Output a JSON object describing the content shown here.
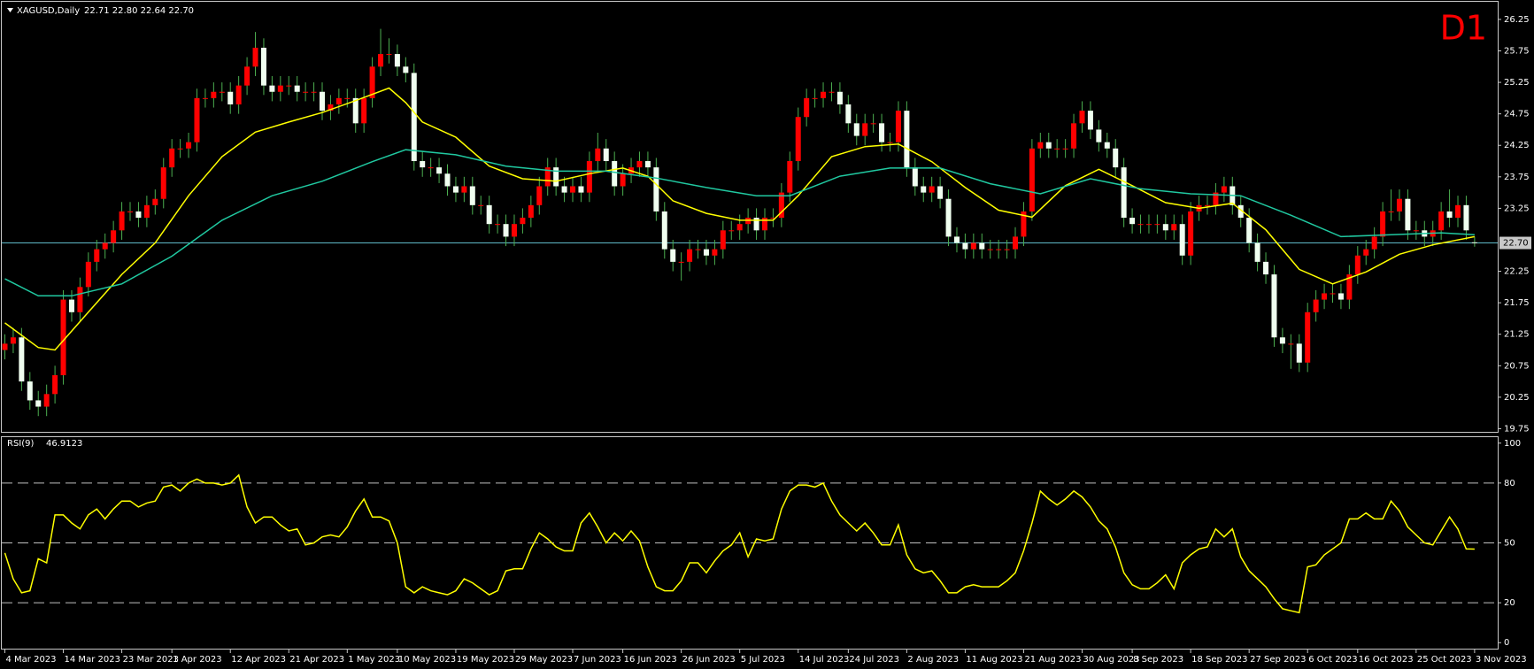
{
  "chart_data": [
    {
      "type": "candlestick",
      "title": "XAGUSD,Daily",
      "info": "22.71 22.80 22.64 22.70",
      "timeframe": "D1",
      "open": [
        21.0,
        21.1,
        21.2,
        20.5,
        20.2,
        20.1,
        20.3,
        20.6,
        21.8,
        21.6,
        22.0,
        22.4,
        22.6,
        22.7,
        22.9,
        23.2,
        23.2,
        23.1,
        23.3,
        23.4,
        23.9,
        24.2,
        24.2,
        24.3,
        25.0,
        25.0,
        25.1,
        25.1,
        24.9,
        25.2,
        25.5,
        25.8,
        25.2,
        25.1,
        25.2,
        25.2,
        25.1,
        25.1,
        25.1,
        24.8,
        24.9,
        25.0,
        25.0,
        24.6,
        25.0,
        25.5,
        25.7,
        25.7,
        25.5,
        25.4,
        24.0,
        23.9,
        23.9,
        23.8,
        23.6,
        23.5,
        23.6,
        23.3,
        23.3,
        23.0,
        23.0,
        22.8,
        23.0,
        23.1,
        23.3,
        23.6,
        23.9,
        23.6,
        23.5,
        23.6,
        23.5,
        24.0,
        24.2,
        24.0,
        23.6,
        23.8,
        23.9,
        24.0,
        23.9,
        23.2,
        22.6,
        22.4,
        22.4,
        22.6,
        22.6,
        22.5,
        22.6,
        22.9,
        22.9,
        23.0,
        23.1,
        22.9,
        23.1,
        23.1,
        23.5,
        24.0,
        24.7,
        25.0,
        25.0,
        25.1,
        25.1,
        24.9,
        24.6,
        24.4,
        24.6,
        24.6,
        24.3,
        24.3,
        24.8,
        23.9,
        23.6,
        23.5,
        23.6,
        23.4,
        22.8,
        22.7,
        22.6,
        22.7,
        22.6,
        22.6,
        22.6,
        22.6,
        22.8,
        23.2,
        24.2,
        24.3,
        24.2,
        24.2,
        24.2,
        24.6,
        24.8,
        24.5,
        24.3,
        24.2,
        23.9,
        23.1,
        23.0,
        23.0,
        23.0,
        23.0,
        22.9,
        23.0,
        22.5,
        23.2,
        23.3,
        23.3,
        23.5,
        23.6,
        23.3,
        23.1,
        22.7,
        22.4,
        22.2,
        21.2,
        21.1,
        21.1,
        20.8,
        21.6,
        21.8,
        21.9,
        21.9,
        21.8,
        22.2,
        22.5,
        22.6,
        22.8,
        23.2,
        23.2,
        23.4,
        22.9,
        22.9,
        22.8,
        22.9,
        23.2,
        23.1,
        23.3,
        22.71
      ],
      "high": [
        21.25,
        21.35,
        21.35,
        20.65,
        20.35,
        20.45,
        20.75,
        21.95,
        21.95,
        22.15,
        22.55,
        22.75,
        22.85,
        23.05,
        23.35,
        23.35,
        23.35,
        23.45,
        23.55,
        24.05,
        24.35,
        24.35,
        24.45,
        25.15,
        25.15,
        25.25,
        25.25,
        25.25,
        25.35,
        25.65,
        26.05,
        25.95,
        25.35,
        25.35,
        25.35,
        25.35,
        25.25,
        25.25,
        25.25,
        25.05,
        25.15,
        25.15,
        25.15,
        25.15,
        25.65,
        26.1,
        25.95,
        25.85,
        25.65,
        25.55,
        24.15,
        24.05,
        24.05,
        23.95,
        23.75,
        23.75,
        23.75,
        23.45,
        23.45,
        23.15,
        23.15,
        23.15,
        23.25,
        23.45,
        23.75,
        24.05,
        24.05,
        23.75,
        23.75,
        23.75,
        24.15,
        24.45,
        24.35,
        24.15,
        23.95,
        24.05,
        24.15,
        24.15,
        24.05,
        23.35,
        22.75,
        22.55,
        22.75,
        22.75,
        22.75,
        22.75,
        23.05,
        23.05,
        23.15,
        23.25,
        23.25,
        23.25,
        23.25,
        23.65,
        24.15,
        24.85,
        25.15,
        25.15,
        25.25,
        25.25,
        25.25,
        25.05,
        24.75,
        24.75,
        24.75,
        24.75,
        24.45,
        24.95,
        24.95,
        24.05,
        23.75,
        23.75,
        23.75,
        23.55,
        22.95,
        22.85,
        22.85,
        22.85,
        22.75,
        22.75,
        22.75,
        22.95,
        23.35,
        24.35,
        24.45,
        24.45,
        24.35,
        24.35,
        24.75,
        24.95,
        24.95,
        24.65,
        24.45,
        24.35,
        24.05,
        23.25,
        23.15,
        23.15,
        23.15,
        23.15,
        23.15,
        23.15,
        23.35,
        23.45,
        23.45,
        23.65,
        23.75,
        23.75,
        23.45,
        23.25,
        22.85,
        22.55,
        22.35,
        21.35,
        21.25,
        21.25,
        21.75,
        21.95,
        22.05,
        22.05,
        22.05,
        22.35,
        22.65,
        22.75,
        22.95,
        23.35,
        23.55,
        23.55,
        23.55,
        23.05,
        23.05,
        23.05,
        23.35,
        23.55,
        23.45,
        23.45,
        22.8
      ],
      "low": [
        20.85,
        20.95,
        20.35,
        20.05,
        19.95,
        19.95,
        20.15,
        20.45,
        21.45,
        21.45,
        21.85,
        22.25,
        22.45,
        22.55,
        22.75,
        23.05,
        22.95,
        22.95,
        23.15,
        23.25,
        23.75,
        24.05,
        24.05,
        24.15,
        24.85,
        24.85,
        24.95,
        24.75,
        24.75,
        25.05,
        25.35,
        25.05,
        24.95,
        24.95,
        25.05,
        24.95,
        24.95,
        24.95,
        24.65,
        24.65,
        24.75,
        24.85,
        24.45,
        24.45,
        24.85,
        25.35,
        25.55,
        25.35,
        25.25,
        23.85,
        23.75,
        23.75,
        23.65,
        23.45,
        23.35,
        23.35,
        23.15,
        23.15,
        22.85,
        22.85,
        22.65,
        22.65,
        22.85,
        22.95,
        23.15,
        23.45,
        23.45,
        23.35,
        23.35,
        23.35,
        23.35,
        23.85,
        23.85,
        23.45,
        23.45,
        23.65,
        23.75,
        23.75,
        23.05,
        22.45,
        22.25,
        22.1,
        22.25,
        22.45,
        22.35,
        22.35,
        22.45,
        22.75,
        22.75,
        22.85,
        22.75,
        22.75,
        22.95,
        22.95,
        23.35,
        23.85,
        24.55,
        24.85,
        24.85,
        24.95,
        24.75,
        24.45,
        24.25,
        24.25,
        24.45,
        24.15,
        24.15,
        24.15,
        23.75,
        23.45,
        23.35,
        23.35,
        23.25,
        22.65,
        22.55,
        22.45,
        22.45,
        22.45,
        22.45,
        22.45,
        22.45,
        22.45,
        22.65,
        23.05,
        24.05,
        24.05,
        24.05,
        24.05,
        24.05,
        24.45,
        24.35,
        24.15,
        24.05,
        23.75,
        22.95,
        22.85,
        22.85,
        22.85,
        22.85,
        22.75,
        22.75,
        22.35,
        22.35,
        23.05,
        23.15,
        23.15,
        23.35,
        23.15,
        22.95,
        22.55,
        22.25,
        22.05,
        21.05,
        20.95,
        20.7,
        20.65,
        20.65,
        21.45,
        21.65,
        21.75,
        21.65,
        21.65,
        22.05,
        22.35,
        22.45,
        22.65,
        23.05,
        23.05,
        22.75,
        22.75,
        22.65,
        22.65,
        22.75,
        22.95,
        22.95,
        22.75,
        22.64
      ],
      "close": [
        21.1,
        21.2,
        20.5,
        20.2,
        20.1,
        20.3,
        20.6,
        21.8,
        21.6,
        22.0,
        22.4,
        22.6,
        22.7,
        22.9,
        23.2,
        23.2,
        23.1,
        23.3,
        23.4,
        23.9,
        24.2,
        24.2,
        24.3,
        25.0,
        25.0,
        25.1,
        25.1,
        24.9,
        25.2,
        25.5,
        25.8,
        25.2,
        25.1,
        25.2,
        25.2,
        25.1,
        25.1,
        25.1,
        24.8,
        24.9,
        25.0,
        25.0,
        24.6,
        25.0,
        25.5,
        25.7,
        25.7,
        25.5,
        25.4,
        24.0,
        23.9,
        23.9,
        23.8,
        23.6,
        23.5,
        23.6,
        23.3,
        23.3,
        23.0,
        23.0,
        22.8,
        23.0,
        23.1,
        23.3,
        23.6,
        23.9,
        23.6,
        23.5,
        23.6,
        23.5,
        24.0,
        24.2,
        24.0,
        23.6,
        23.8,
        23.9,
        24.0,
        23.9,
        23.2,
        22.6,
        22.4,
        22.4,
        22.6,
        22.6,
        22.5,
        22.6,
        22.9,
        22.9,
        23.0,
        23.1,
        22.9,
        23.1,
        23.1,
        23.5,
        24.0,
        24.7,
        25.0,
        25.0,
        25.1,
        25.1,
        24.9,
        24.6,
        24.4,
        24.6,
        24.6,
        24.3,
        24.3,
        24.8,
        23.9,
        23.6,
        23.5,
        23.6,
        23.4,
        22.8,
        22.7,
        22.6,
        22.7,
        22.6,
        22.6,
        22.6,
        22.6,
        22.8,
        23.2,
        24.2,
        24.3,
        24.2,
        24.2,
        24.2,
        24.6,
        24.8,
        24.5,
        24.3,
        24.2,
        23.9,
        23.1,
        23.0,
        23.0,
        23.0,
        23.0,
        22.9,
        23.0,
        22.5,
        23.2,
        23.3,
        23.3,
        23.5,
        23.6,
        23.3,
        23.1,
        22.7,
        22.4,
        22.2,
        21.2,
        21.1,
        21.1,
        20.8,
        21.6,
        21.8,
        21.9,
        21.9,
        21.8,
        22.2,
        22.5,
        22.6,
        22.8,
        23.2,
        23.2,
        23.4,
        22.9,
        22.9,
        22.8,
        22.9,
        23.2,
        23.1,
        23.3,
        22.9,
        22.7
      ],
      "up_color": "#ff0000",
      "down_color": "#f0fff0",
      "wick_color": "#4caf50",
      "lines": [
        {
          "color": "#ffff00",
          "x": [
            0,
            4,
            6,
            10,
            14,
            18,
            22,
            26,
            30,
            34,
            38,
            42,
            46,
            48,
            50,
            54,
            58,
            62,
            66,
            70,
            74,
            77,
            80,
            84,
            88,
            92,
            95,
            99,
            103,
            107,
            111,
            115,
            119,
            123,
            127,
            131,
            135,
            139,
            143,
            147,
            151,
            155,
            159,
            163,
            167,
            171,
            176
          ],
          "values": [
            21.43,
            21.04,
            21.0,
            21.6,
            22.2,
            22.7,
            23.45,
            24.07,
            24.46,
            24.62,
            24.77,
            24.96,
            25.16,
            24.93,
            24.62,
            24.38,
            23.92,
            23.72,
            23.68,
            23.8,
            23.89,
            23.76,
            23.37,
            23.17,
            23.06,
            23.06,
            23.45,
            24.07,
            24.23,
            24.27,
            23.99,
            23.58,
            23.22,
            23.11,
            23.61,
            23.87,
            23.61,
            23.34,
            23.25,
            23.33,
            22.91,
            22.28,
            22.05,
            22.24,
            22.52,
            22.67,
            22.8
          ]
        },
        {
          "color": "#20c8a0",
          "x": [
            0,
            4,
            8,
            14,
            20,
            26,
            32,
            38,
            44,
            48,
            54,
            60,
            66,
            72,
            78,
            84,
            90,
            94,
            100,
            106,
            112,
            118,
            124,
            130,
            136,
            142,
            148,
            154,
            160,
            166,
            172,
            176
          ],
          "values": [
            22.13,
            21.86,
            21.86,
            22.05,
            22.49,
            23.06,
            23.45,
            23.68,
            23.99,
            24.18,
            24.1,
            23.92,
            23.84,
            23.84,
            23.73,
            23.58,
            23.45,
            23.45,
            23.76,
            23.89,
            23.89,
            23.64,
            23.48,
            23.72,
            23.56,
            23.48,
            23.45,
            23.14,
            22.8,
            22.83,
            22.86,
            22.83
          ]
        }
      ],
      "price_line": {
        "value": 22.7,
        "label": "22.70"
      },
      "price_line_color": "#5fb8c8",
      "ylim": [
        19.7,
        26.53
      ],
      "yticks": [
        19.75,
        20.25,
        20.75,
        21.25,
        21.75,
        22.25,
        23.25,
        23.75,
        24.25,
        24.75,
        25.25,
        25.75,
        26.25
      ],
      "xticks": [
        {
          "value": 0,
          "label": "4 Mar 2023"
        },
        {
          "value": 7,
          "label": "14 Mar 2023"
        },
        {
          "value": 14,
          "label": "23 Mar 2023"
        },
        {
          "value": 20,
          "label": "1 Apr 2023"
        },
        {
          "value": 27,
          "label": "12 Apr 2023"
        },
        {
          "value": 34,
          "label": "21 Apr 2023"
        },
        {
          "value": 41,
          "label": "1 May 2023"
        },
        {
          "value": 47,
          "label": "10 May 2023"
        },
        {
          "value": 54,
          "label": "19 May 2023"
        },
        {
          "value": 61,
          "label": "29 May 2023"
        },
        {
          "value": 68,
          "label": "7 Jun 2023"
        },
        {
          "value": 74,
          "label": "16 Jun 2023"
        },
        {
          "value": 81,
          "label": "26 Jun 2023"
        },
        {
          "value": 88,
          "label": "5 Jul 2023"
        },
        {
          "value": 95,
          "label": "14 Jul 2023"
        },
        {
          "value": 101,
          "label": "24 Jul 2023"
        },
        {
          "value": 108,
          "label": "2 Aug 2023"
        },
        {
          "value": 115,
          "label": "11 Aug 2023"
        },
        {
          "value": 122,
          "label": "21 Aug 2023"
        },
        {
          "value": 129,
          "label": "30 Aug 2023"
        },
        {
          "value": 135,
          "label": "8 Sep 2023"
        },
        {
          "value": 142,
          "label": "18 Sep 2023"
        },
        {
          "value": 149,
          "label": "27 Sep 2023"
        },
        {
          "value": 156,
          "label": "6 Oct 2023"
        },
        {
          "value": 162,
          "label": "16 Oct 2023"
        },
        {
          "value": 169,
          "label": "25 Oct 2023"
        },
        {
          "value": 176,
          "label": "3 Nov 2023"
        }
      ]
    },
    {
      "type": "line",
      "title": "RSI(9)",
      "color": "#ffff00",
      "values": [
        45,
        32,
        25,
        26,
        42,
        40,
        64,
        64,
        60,
        57,
        64,
        67,
        62,
        67,
        71,
        71,
        68,
        70,
        71,
        78,
        79,
        76,
        80,
        82,
        80,
        80,
        79,
        80,
        84,
        68,
        60,
        63,
        63,
        59,
        56,
        57,
        49,
        50,
        53,
        54,
        53,
        58,
        66,
        72,
        63,
        63,
        61,
        50,
        28,
        25,
        28,
        26,
        25,
        24,
        26,
        32,
        30,
        27,
        24,
        26,
        36,
        37,
        37,
        47,
        55,
        52,
        48,
        46,
        46,
        60,
        65,
        58,
        50,
        55,
        51,
        56,
        51,
        38,
        28,
        26,
        26,
        31,
        40,
        40,
        35,
        41,
        46,
        49,
        55,
        43,
        52,
        51,
        52,
        67,
        76,
        79,
        79,
        78,
        80,
        71,
        64,
        60,
        56,
        60,
        55,
        49,
        49,
        59,
        44,
        37,
        35,
        36,
        31,
        25,
        25,
        28,
        29,
        28,
        28,
        28,
        31,
        35,
        46,
        60,
        76,
        72,
        69,
        72,
        76,
        73,
        68,
        61,
        57,
        48,
        35,
        29,
        27,
        27,
        30,
        34,
        27,
        40,
        44,
        47,
        48,
        57,
        53,
        57,
        43,
        36,
        32,
        28,
        22,
        17,
        16,
        15,
        38,
        39,
        44,
        47,
        50,
        62,
        62,
        65,
        62,
        62,
        71,
        66,
        58,
        54,
        50,
        49,
        56,
        63,
        57,
        47,
        46.9123
      ],
      "ylim": [
        -3,
        103
      ],
      "yticks": [
        0,
        20,
        50,
        80,
        100
      ],
      "levels": [
        20,
        50,
        80
      ]
    }
  ]
}
